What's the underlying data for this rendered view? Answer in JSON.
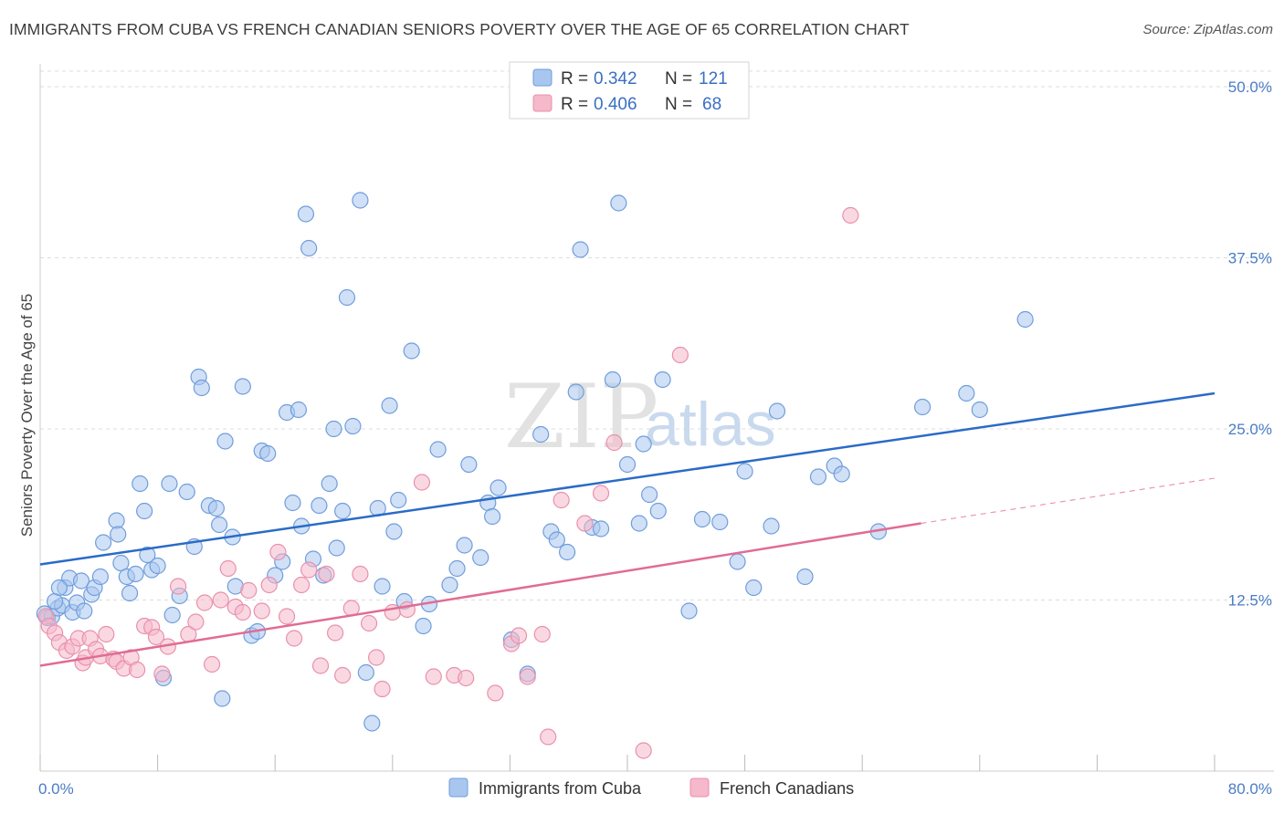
{
  "title": "IMMIGRANTS FROM CUBA VS FRENCH CANADIAN SENIORS POVERTY OVER THE AGE OF 65 CORRELATION CHART",
  "source": "Source: ZipAtlas.com",
  "watermark": {
    "zip": "ZIP",
    "atlas": "atlas"
  },
  "legend": {
    "rows": [
      {
        "r_label": "R =",
        "r_value": "0.342",
        "n_label": "N =",
        "n_value": "121"
      },
      {
        "r_label": "R =",
        "r_value": "0.406",
        "n_label": "N =",
        "n_value": "68"
      }
    ]
  },
  "colors": {
    "cuba_fill": "#a9c6ef",
    "cuba_stroke": "#6f9ddb",
    "cuba_line": "#2a6bc7",
    "french_fill": "#f6b8cb",
    "french_stroke": "#e890ad",
    "french_line": "#e06c94",
    "grid": "#dddddd",
    "tick_text": "#4a7cc4"
  },
  "chart_data": {
    "type": "scatter",
    "title": "IMMIGRANTS FROM CUBA VS FRENCH CANADIAN SENIORS POVERTY OVER THE AGE OF 65 CORRELATION CHART",
    "xlabel": "",
    "ylabel": "Seniors Poverty Over the Age of 65",
    "xlim": [
      0,
      80
    ],
    "ylim": [
      0,
      50
    ],
    "x_tick_labels": [
      "0.0%",
      "80.0%"
    ],
    "y_ticks": [
      12.5,
      25.0,
      37.5,
      50.0
    ],
    "y_tick_labels": [
      "12.5%",
      "25.0%",
      "37.5%",
      "50.0%"
    ],
    "grid": true,
    "legend_position": "top-center",
    "series": [
      {
        "name": "Immigrants from Cuba",
        "trend": {
          "x": [
            0,
            80
          ],
          "y": [
            15.1,
            27.6
          ]
        },
        "points": [
          [
            0.5,
            11.2
          ],
          [
            0.8,
            11.3
          ],
          [
            1.2,
            11.9
          ],
          [
            1.5,
            12.1
          ],
          [
            1.7,
            13.4
          ],
          [
            2.0,
            14.1
          ],
          [
            2.2,
            11.6
          ],
          [
            2.5,
            12.3
          ],
          [
            2.8,
            13.9
          ],
          [
            3.0,
            11.7
          ],
          [
            3.5,
            12.9
          ],
          [
            3.7,
            13.4
          ],
          [
            4.1,
            14.2
          ],
          [
            4.3,
            16.7
          ],
          [
            5.2,
            18.3
          ],
          [
            5.3,
            17.3
          ],
          [
            5.5,
            15.2
          ],
          [
            5.9,
            14.2
          ],
          [
            6.1,
            13.0
          ],
          [
            6.5,
            14.4
          ],
          [
            6.8,
            21.0
          ],
          [
            7.1,
            19.0
          ],
          [
            7.3,
            15.8
          ],
          [
            7.6,
            14.7
          ],
          [
            8.0,
            15.0
          ],
          [
            8.4,
            6.8
          ],
          [
            8.8,
            21.0
          ],
          [
            9.0,
            11.4
          ],
          [
            9.5,
            12.8
          ],
          [
            10.0,
            20.4
          ],
          [
            10.5,
            16.4
          ],
          [
            10.8,
            28.8
          ],
          [
            11.0,
            28.0
          ],
          [
            11.5,
            19.4
          ],
          [
            12.0,
            19.2
          ],
          [
            12.2,
            18.0
          ],
          [
            12.6,
            24.1
          ],
          [
            13.1,
            17.1
          ],
          [
            13.3,
            13.5
          ],
          [
            13.8,
            28.1
          ],
          [
            12.4,
            5.3
          ],
          [
            14.4,
            9.9
          ],
          [
            14.8,
            10.2
          ],
          [
            15.1,
            23.4
          ],
          [
            15.5,
            23.2
          ],
          [
            16.0,
            14.3
          ],
          [
            16.5,
            15.3
          ],
          [
            16.8,
            26.2
          ],
          [
            17.2,
            19.6
          ],
          [
            17.6,
            26.4
          ],
          [
            17.8,
            17.9
          ],
          [
            18.1,
            40.7
          ],
          [
            18.3,
            38.2
          ],
          [
            18.6,
            15.5
          ],
          [
            19.0,
            19.4
          ],
          [
            19.3,
            14.3
          ],
          [
            19.7,
            21.0
          ],
          [
            20.0,
            25.0
          ],
          [
            20.2,
            16.3
          ],
          [
            20.6,
            19.0
          ],
          [
            20.9,
            34.6
          ],
          [
            21.3,
            25.2
          ],
          [
            21.8,
            41.7
          ],
          [
            22.2,
            7.2
          ],
          [
            22.6,
            3.5
          ],
          [
            23.0,
            19.2
          ],
          [
            23.3,
            13.5
          ],
          [
            23.8,
            26.7
          ],
          [
            24.1,
            17.5
          ],
          [
            24.4,
            19.8
          ],
          [
            24.8,
            12.4
          ],
          [
            25.3,
            30.7
          ],
          [
            26.1,
            10.6
          ],
          [
            26.5,
            12.2
          ],
          [
            27.1,
            23.5
          ],
          [
            27.9,
            13.6
          ],
          [
            28.4,
            14.8
          ],
          [
            28.9,
            16.5
          ],
          [
            29.2,
            22.4
          ],
          [
            30.0,
            15.6
          ],
          [
            30.5,
            19.6
          ],
          [
            30.8,
            18.6
          ],
          [
            31.2,
            20.7
          ],
          [
            32.1,
            9.6
          ],
          [
            33.2,
            7.1
          ],
          [
            34.1,
            24.6
          ],
          [
            34.8,
            17.5
          ],
          [
            35.2,
            16.9
          ],
          [
            35.9,
            16.0
          ],
          [
            36.5,
            27.7
          ],
          [
            36.8,
            38.1
          ],
          [
            37.6,
            17.8
          ],
          [
            38.2,
            17.7
          ],
          [
            39.0,
            28.6
          ],
          [
            39.4,
            41.5
          ],
          [
            40.0,
            22.4
          ],
          [
            40.8,
            18.1
          ],
          [
            41.1,
            23.9
          ],
          [
            41.5,
            20.2
          ],
          [
            42.1,
            19.0
          ],
          [
            42.4,
            28.6
          ],
          [
            44.2,
            11.7
          ],
          [
            45.1,
            18.4
          ],
          [
            46.3,
            18.2
          ],
          [
            47.5,
            15.3
          ],
          [
            48.0,
            21.9
          ],
          [
            48.6,
            13.4
          ],
          [
            49.8,
            17.9
          ],
          [
            50.2,
            26.3
          ],
          [
            52.1,
            14.2
          ],
          [
            53.0,
            21.5
          ],
          [
            54.1,
            22.3
          ],
          [
            54.6,
            21.7
          ],
          [
            57.1,
            17.5
          ],
          [
            60.1,
            26.6
          ],
          [
            63.1,
            27.6
          ],
          [
            64.0,
            26.4
          ],
          [
            67.1,
            33.0
          ],
          [
            0.3,
            11.5
          ],
          [
            1.0,
            12.4
          ],
          [
            1.3,
            13.4
          ]
        ]
      },
      {
        "name": "French Canadians",
        "trend": {
          "x": [
            0,
            60
          ],
          "y": [
            7.7,
            18.1
          ],
          "dashed_to": {
            "x": 80,
            "y": 21.4
          }
        },
        "points": [
          [
            0.4,
            11.3
          ],
          [
            0.6,
            10.6
          ],
          [
            1.0,
            10.1
          ],
          [
            1.3,
            9.4
          ],
          [
            1.8,
            8.8
          ],
          [
            2.2,
            9.1
          ],
          [
            2.6,
            9.7
          ],
          [
            2.9,
            7.9
          ],
          [
            3.1,
            8.3
          ],
          [
            3.4,
            9.7
          ],
          [
            3.8,
            8.9
          ],
          [
            4.1,
            8.4
          ],
          [
            4.5,
            10.0
          ],
          [
            5.0,
            8.2
          ],
          [
            5.2,
            8.0
          ],
          [
            5.7,
            7.5
          ],
          [
            6.2,
            8.3
          ],
          [
            6.6,
            7.4
          ],
          [
            7.1,
            10.6
          ],
          [
            7.6,
            10.5
          ],
          [
            7.9,
            9.8
          ],
          [
            8.3,
            7.1
          ],
          [
            8.7,
            9.1
          ],
          [
            9.4,
            13.5
          ],
          [
            10.1,
            10.0
          ],
          [
            10.6,
            10.9
          ],
          [
            11.2,
            12.3
          ],
          [
            11.7,
            7.8
          ],
          [
            12.3,
            12.5
          ],
          [
            12.8,
            14.8
          ],
          [
            13.3,
            12.0
          ],
          [
            13.8,
            11.6
          ],
          [
            14.2,
            13.2
          ],
          [
            15.1,
            11.7
          ],
          [
            15.6,
            13.6
          ],
          [
            16.2,
            16.0
          ],
          [
            16.8,
            11.3
          ],
          [
            17.3,
            9.7
          ],
          [
            17.8,
            13.6
          ],
          [
            18.3,
            14.7
          ],
          [
            19.1,
            7.7
          ],
          [
            19.5,
            14.4
          ],
          [
            20.1,
            10.1
          ],
          [
            20.6,
            7.0
          ],
          [
            21.2,
            11.9
          ],
          [
            21.8,
            14.4
          ],
          [
            22.4,
            10.8
          ],
          [
            22.9,
            8.3
          ],
          [
            23.3,
            6.0
          ],
          [
            24.0,
            11.6
          ],
          [
            25.0,
            11.8
          ],
          [
            26.0,
            21.1
          ],
          [
            26.8,
            6.9
          ],
          [
            28.2,
            7.0
          ],
          [
            29.0,
            6.8
          ],
          [
            31.0,
            5.7
          ],
          [
            32.1,
            9.3
          ],
          [
            32.6,
            9.9
          ],
          [
            33.2,
            6.9
          ],
          [
            34.2,
            10.0
          ],
          [
            34.6,
            2.5
          ],
          [
            35.5,
            19.8
          ],
          [
            37.1,
            18.1
          ],
          [
            38.2,
            20.3
          ],
          [
            39.1,
            24.0
          ],
          [
            41.1,
            1.5
          ],
          [
            43.6,
            30.4
          ],
          [
            55.2,
            40.6
          ]
        ]
      }
    ]
  }
}
